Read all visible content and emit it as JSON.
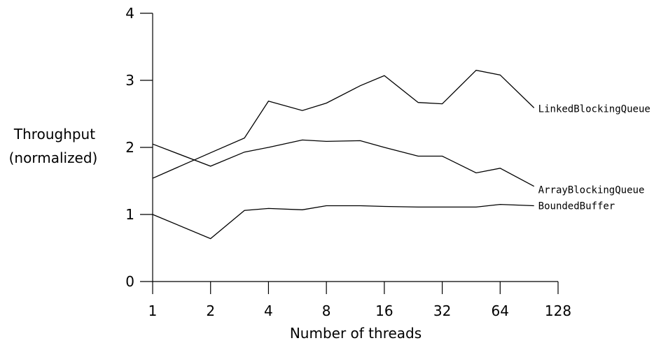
{
  "chart_data": {
    "type": "line",
    "xlabel": "Number of threads",
    "ylabel_lines": [
      "Throughput",
      "(normalized)"
    ],
    "x_scale": "log2",
    "xlim": [
      1,
      128
    ],
    "ylim": [
      0,
      4
    ],
    "x_ticks": [
      1,
      2,
      4,
      8,
      16,
      32,
      64,
      128
    ],
    "x_tick_labels": [
      "1",
      "2",
      "4",
      "8",
      "16",
      "32",
      "64",
      "128"
    ],
    "y_ticks": [
      0,
      1,
      2,
      3,
      4
    ],
    "y_tick_labels": [
      "0",
      "1",
      "2",
      "3",
      "4"
    ],
    "grid": false,
    "legend": "inline labels at line ends",
    "series": [
      {
        "name": "LinkedBlockingQueue",
        "x": [
          1,
          2,
          3,
          4,
          6,
          8,
          12,
          16,
          24,
          32,
          48,
          64,
          96
        ],
        "y": [
          1.54,
          1.92,
          2.14,
          2.69,
          2.55,
          2.66,
          2.92,
          3.07,
          2.67,
          2.65,
          3.15,
          3.08,
          2.59
        ]
      },
      {
        "name": "ArrayBlockingQueue",
        "x": [
          1,
          2,
          3,
          4,
          6,
          8,
          12,
          16,
          24,
          32,
          48,
          64,
          96
        ],
        "y": [
          2.05,
          1.72,
          1.93,
          2.0,
          2.11,
          2.09,
          2.1,
          2.0,
          1.87,
          1.87,
          1.62,
          1.69,
          1.42
        ]
      },
      {
        "name": "BoundedBuffer",
        "x": [
          1,
          2,
          3,
          4,
          6,
          8,
          12,
          16,
          24,
          32,
          48,
          64,
          96
        ],
        "y": [
          1.0,
          0.64,
          1.06,
          1.09,
          1.07,
          1.13,
          1.13,
          1.12,
          1.11,
          1.11,
          1.11,
          1.15,
          1.13
        ]
      }
    ]
  }
}
